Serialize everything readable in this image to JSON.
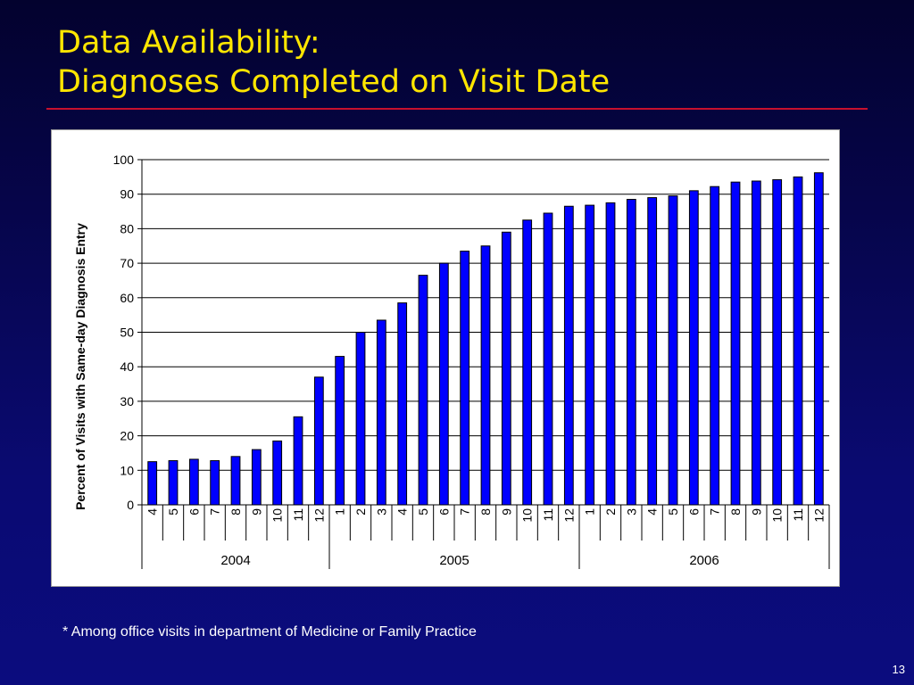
{
  "slide": {
    "title_lines": [
      "Data Availability:",
      "Diagnoses Completed on Visit Date"
    ],
    "footnote": "* Among office visits in department of Medicine or Family Practice",
    "page_number": "13"
  },
  "chart_data": {
    "type": "bar",
    "title": "",
    "xlabel": "",
    "ylabel": "Percent of Visits with Same-day Diagnosis Entry",
    "ylim": [
      0,
      100
    ],
    "yticks": [
      0,
      10,
      20,
      30,
      40,
      50,
      60,
      70,
      80,
      90,
      100
    ],
    "grid": "horizontal",
    "legend": "none",
    "bar_color": "#0000ff",
    "categories": [
      "4",
      "5",
      "6",
      "7",
      "8",
      "9",
      "10",
      "11",
      "12",
      "1",
      "2",
      "3",
      "4",
      "5",
      "6",
      "7",
      "8",
      "9",
      "10",
      "11",
      "12",
      "1",
      "2",
      "3",
      "4",
      "5",
      "6",
      "7",
      "8",
      "9",
      "10",
      "11",
      "12"
    ],
    "groups": [
      {
        "label": "2004",
        "count": 9
      },
      {
        "label": "2005",
        "count": 12
      },
      {
        "label": "2006",
        "count": 12
      }
    ],
    "values": [
      12.5,
      12.8,
      13.2,
      12.8,
      14,
      16,
      18.5,
      25.5,
      37,
      43,
      50,
      53.5,
      58.5,
      66.5,
      70,
      73.5,
      75,
      79,
      82.5,
      84.5,
      86.5,
      86.8,
      87.5,
      88.5,
      89,
      89.5,
      91,
      92.2,
      93.5,
      93.8,
      94.2,
      95,
      96.2
    ]
  }
}
